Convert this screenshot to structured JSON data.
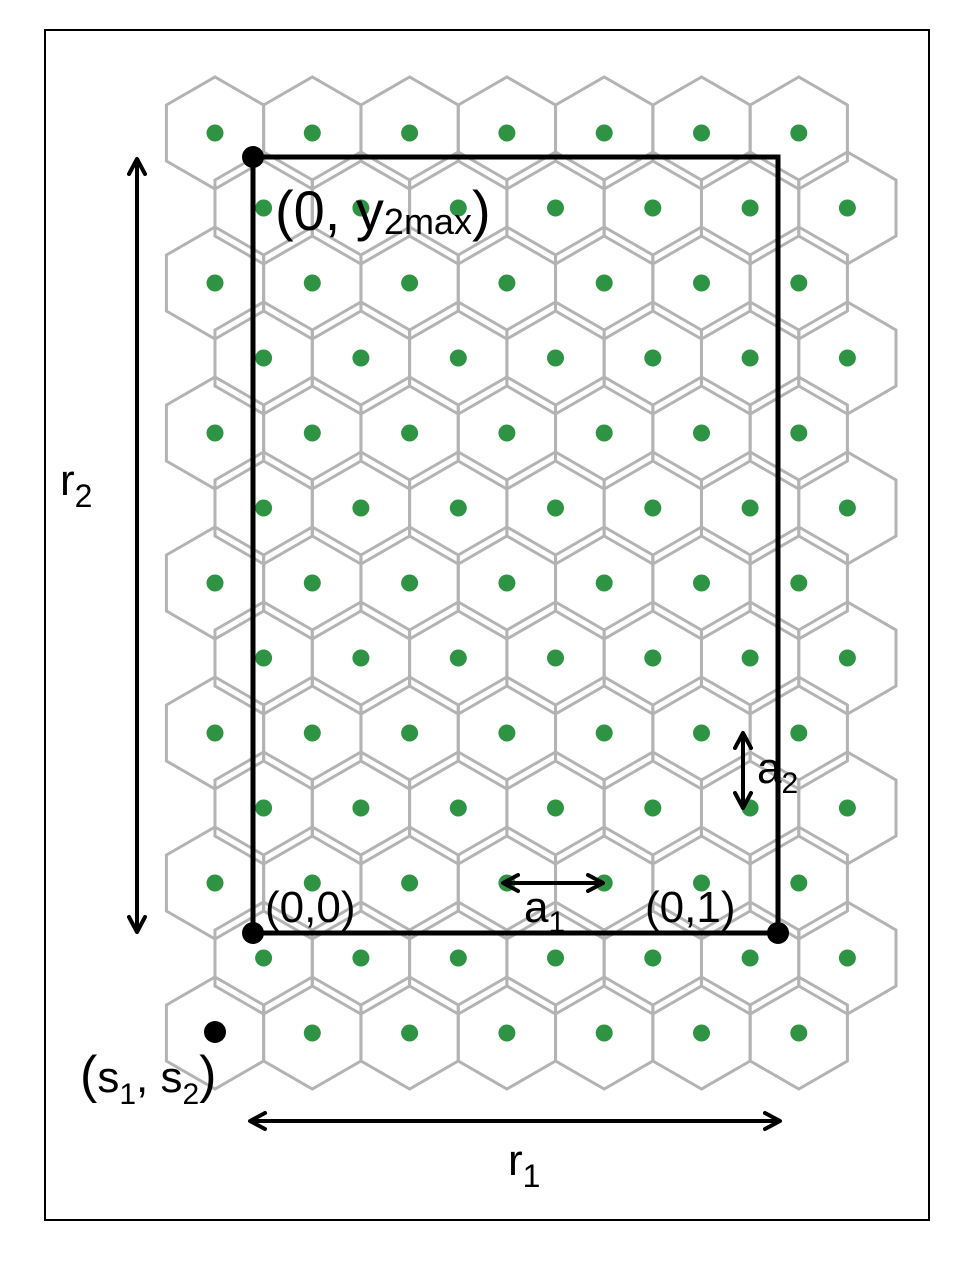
{
  "labels": {
    "r1": {
      "base": "r",
      "sub": "1"
    },
    "r2": {
      "base": "r",
      "sub": "2"
    },
    "a1": {
      "base": "a",
      "sub": "1"
    },
    "a2": {
      "base": "a",
      "sub": "2"
    },
    "origin": "(0,0)",
    "corner": "(0,1)",
    "top": {
      "open": "(0, y",
      "sub": "2max",
      "close": ")"
    },
    "offset": {
      "open": "(",
      "s1": "s",
      "s1_sub": "1",
      "comma": ", ",
      "s2": "s",
      "s2_sub": "2",
      "close": ")"
    }
  },
  "colors": {
    "hex_edge": "#b3b3b3",
    "dot": "#2e9444",
    "frame": "#000000"
  },
  "grid": {
    "cell_shape": "hexagon",
    "rows": 13,
    "cells_per_row": 7
  }
}
